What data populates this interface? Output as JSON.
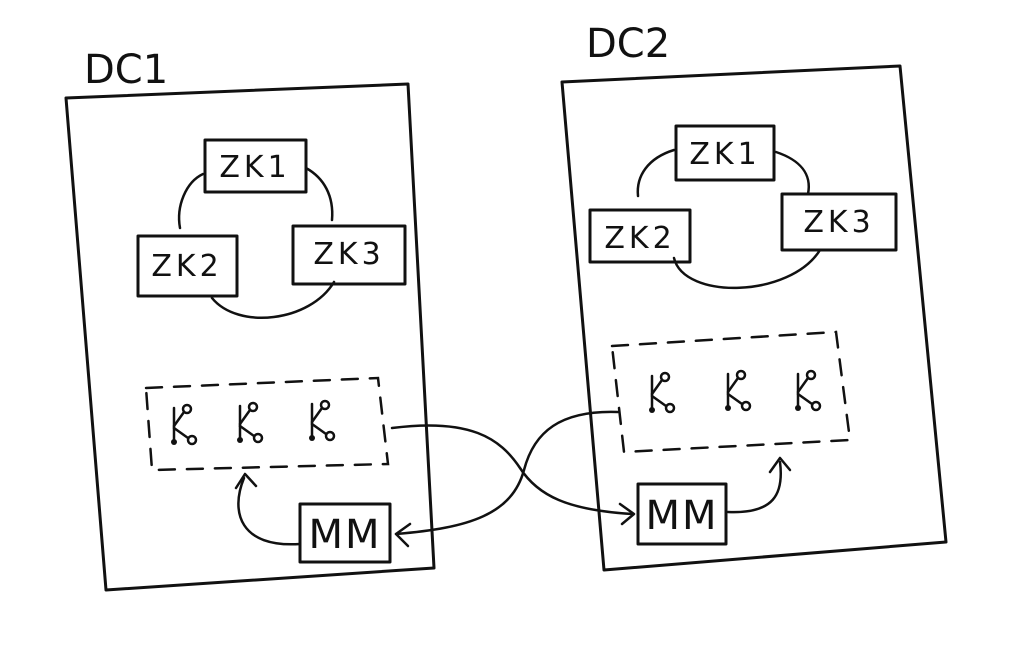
{
  "datacenters": [
    {
      "label": "DC1",
      "zookeepers": [
        "ZK1",
        "ZK2",
        "ZK3"
      ],
      "kafka_brokers": 3,
      "mirror_maker": "MM"
    },
    {
      "label": "DC2",
      "zookeepers": [
        "ZK1",
        "ZK2",
        "ZK3"
      ],
      "kafka_brokers": 3,
      "mirror_maker": "MM"
    }
  ],
  "icons": {
    "broker": "kafka-broker-icon"
  }
}
